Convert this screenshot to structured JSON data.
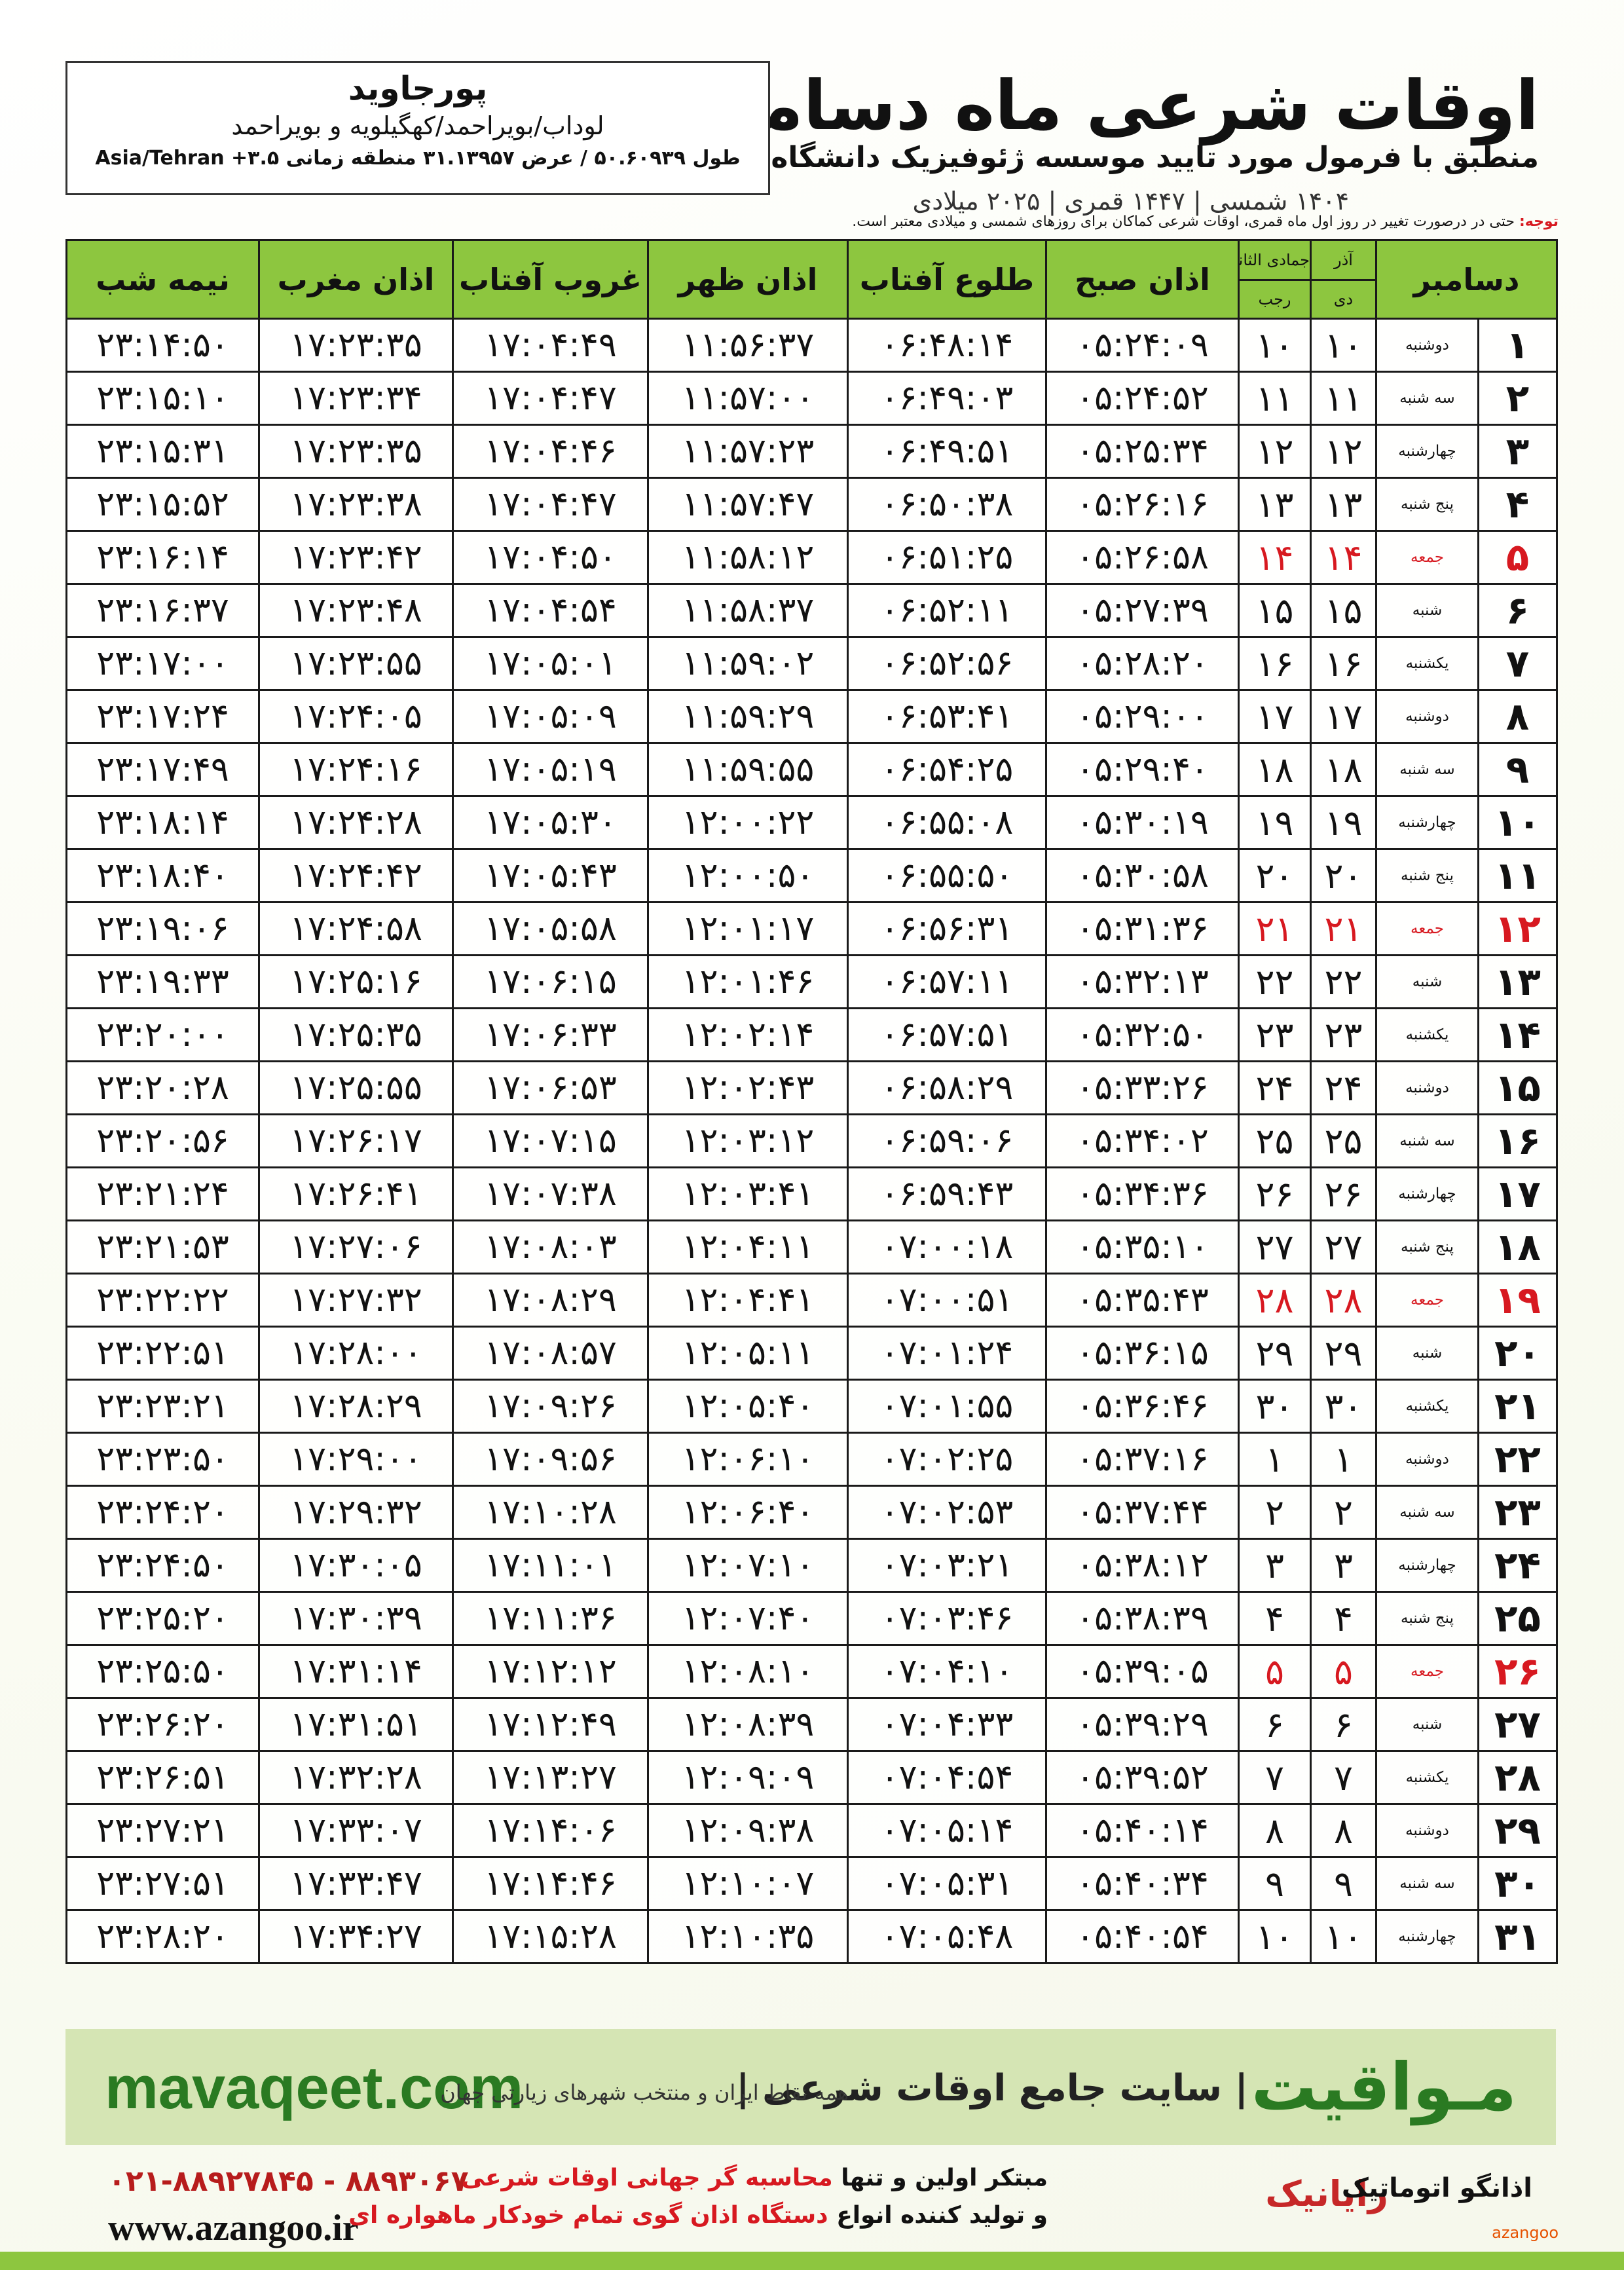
{
  "header": {
    "title": "اوقات شرعی ماه دسامبر",
    "subtitle": "منطبق با فرمول مورد تایید موسسه ژئوفیزیک دانشگاه تهران",
    "dates": "۱۴۰۴ شمسی | ۱۴۴۷ قمری | ۲۰۲۵ میلادی"
  },
  "location": {
    "name": "پورجاوید",
    "region": "لوداب/بویراحمد/کهگیلویه و بویراحمد",
    "coords": "طول ۵۰.۶۰۹۳۹ / عرض ۳۱.۱۳۹۵۷ منطقه زمانی ۳.۵+ Asia/Tehran"
  },
  "note": {
    "label": "توجه:",
    "text": "حتی در درصورت تغییر در روز اول ماه قمری، اوقات شرعی کماکان برای روزهای شمسی و میلادی معتبر است."
  },
  "table": {
    "month_label": "دسامبر",
    "shamsi": [
      "آذر",
      "دی"
    ],
    "lunar": [
      "جمادی الثانی",
      "رجب"
    ],
    "columns": [
      "اذان صبح",
      "طلوع آفتاب",
      "اذان ظهر",
      "غروب آفتاب",
      "اذان مغرب",
      "نیمه شب"
    ],
    "rows": [
      {
        "cells": [
          "۱",
          "دوشنبه",
          "۱۰",
          "۱۰",
          "۰۵:۲۴:۰۹",
          "۰۶:۴۸:۱۴",
          "۱۱:۵۶:۳۷",
          "۱۷:۰۴:۴۹",
          "۱۷:۲۳:۳۵",
          "۲۳:۱۴:۵۰"
        ]
      },
      {
        "cells": [
          "۲",
          "سه شنبه",
          "۱۱",
          "۱۱",
          "۰۵:۲۴:۵۲",
          "۰۶:۴۹:۰۳",
          "۱۱:۵۷:۰۰",
          "۱۷:۰۴:۴۷",
          "۱۷:۲۳:۳۴",
          "۲۳:۱۵:۱۰"
        ]
      },
      {
        "cells": [
          "۳",
          "چهارشنبه",
          "۱۲",
          "۱۲",
          "۰۵:۲۵:۳۴",
          "۰۶:۴۹:۵۱",
          "۱۱:۵۷:۲۳",
          "۱۷:۰۴:۴۶",
          "۱۷:۲۳:۳۵",
          "۲۳:۱۵:۳۱"
        ]
      },
      {
        "cells": [
          "۴",
          "پنج شنبه",
          "۱۳",
          "۱۳",
          "۰۵:۲۶:۱۶",
          "۰۶:۵۰:۳۸",
          "۱۱:۵۷:۴۷",
          "۱۷:۰۴:۴۷",
          "۱۷:۲۳:۳۸",
          "۲۳:۱۵:۵۲"
        ]
      },
      {
        "cells": [
          "۵",
          "جمعه",
          "۱۴",
          "۱۴",
          "۰۵:۲۶:۵۸",
          "۰۶:۵۱:۲۵",
          "۱۱:۵۸:۱۲",
          "۱۷:۰۴:۵۰",
          "۱۷:۲۳:۴۲",
          "۲۳:۱۶:۱۴"
        ],
        "color": "#d71920"
      },
      {
        "cells": [
          "۶",
          "شنبه",
          "۱۵",
          "۱۵",
          "۰۵:۲۷:۳۹",
          "۰۶:۵۲:۱۱",
          "۱۱:۵۸:۳۷",
          "۱۷:۰۴:۵۴",
          "۱۷:۲۳:۴۸",
          "۲۳:۱۶:۳۷"
        ]
      },
      {
        "cells": [
          "۷",
          "یکشنبه",
          "۱۶",
          "۱۶",
          "۰۵:۲۸:۲۰",
          "۰۶:۵۲:۵۶",
          "۱۱:۵۹:۰۲",
          "۱۷:۰۵:۰۱",
          "۱۷:۲۳:۵۵",
          "۲۳:۱۷:۰۰"
        ]
      },
      {
        "cells": [
          "۸",
          "دوشنبه",
          "۱۷",
          "۱۷",
          "۰۵:۲۹:۰۰",
          "۰۶:۵۳:۴۱",
          "۱۱:۵۹:۲۹",
          "۱۷:۰۵:۰۹",
          "۱۷:۲۴:۰۵",
          "۲۳:۱۷:۲۴"
        ]
      },
      {
        "cells": [
          "۹",
          "سه شنبه",
          "۱۸",
          "۱۸",
          "۰۵:۲۹:۴۰",
          "۰۶:۵۴:۲۵",
          "۱۱:۵۹:۵۵",
          "۱۷:۰۵:۱۹",
          "۱۷:۲۴:۱۶",
          "۲۳:۱۷:۴۹"
        ]
      },
      {
        "cells": [
          "۱۰",
          "چهارشنبه",
          "۱۹",
          "۱۹",
          "۰۵:۳۰:۱۹",
          "۰۶:۵۵:۰۸",
          "۱۲:۰۰:۲۲",
          "۱۷:۰۵:۳۰",
          "۱۷:۲۴:۲۸",
          "۲۳:۱۸:۱۴"
        ]
      },
      {
        "cells": [
          "۱۱",
          "پنج شنبه",
          "۲۰",
          "۲۰",
          "۰۵:۳۰:۵۸",
          "۰۶:۵۵:۵۰",
          "۱۲:۰۰:۵۰",
          "۱۷:۰۵:۴۳",
          "۱۷:۲۴:۴۲",
          "۲۳:۱۸:۴۰"
        ]
      },
      {
        "cells": [
          "۱۲",
          "جمعه",
          "۲۱",
          "۲۱",
          "۰۵:۳۱:۳۶",
          "۰۶:۵۶:۳۱",
          "۱۲:۰۱:۱۷",
          "۱۷:۰۵:۵۸",
          "۱۷:۲۴:۵۸",
          "۲۳:۱۹:۰۶"
        ],
        "color": "#d71920"
      },
      {
        "cells": [
          "۱۳",
          "شنبه",
          "۲۲",
          "۲۲",
          "۰۵:۳۲:۱۳",
          "۰۶:۵۷:۱۱",
          "۱۲:۰۱:۴۶",
          "۱۷:۰۶:۱۵",
          "۱۷:۲۵:۱۶",
          "۲۳:۱۹:۳۳"
        ]
      },
      {
        "cells": [
          "۱۴",
          "یکشنبه",
          "۲۳",
          "۲۳",
          "۰۵:۳۲:۵۰",
          "۰۶:۵۷:۵۱",
          "۱۲:۰۲:۱۴",
          "۱۷:۰۶:۳۳",
          "۱۷:۲۵:۳۵",
          "۲۳:۲۰:۰۰"
        ]
      },
      {
        "cells": [
          "۱۵",
          "دوشنبه",
          "۲۴",
          "۲۴",
          "۰۵:۳۳:۲۶",
          "۰۶:۵۸:۲۹",
          "۱۲:۰۲:۴۳",
          "۱۷:۰۶:۵۳",
          "۱۷:۲۵:۵۵",
          "۲۳:۲۰:۲۸"
        ]
      },
      {
        "cells": [
          "۱۶",
          "سه شنبه",
          "۲۵",
          "۲۵",
          "۰۵:۳۴:۰۲",
          "۰۶:۵۹:۰۶",
          "۱۲:۰۳:۱۲",
          "۱۷:۰۷:۱۵",
          "۱۷:۲۶:۱۷",
          "۲۳:۲۰:۵۶"
        ]
      },
      {
        "cells": [
          "۱۷",
          "چهارشنبه",
          "۲۶",
          "۲۶",
          "۰۵:۳۴:۳۶",
          "۰۶:۵۹:۴۳",
          "۱۲:۰۳:۴۱",
          "۱۷:۰۷:۳۸",
          "۱۷:۲۶:۴۱",
          "۲۳:۲۱:۲۴"
        ]
      },
      {
        "cells": [
          "۱۸",
          "پنج شنبه",
          "۲۷",
          "۲۷",
          "۰۵:۳۵:۱۰",
          "۰۷:۰۰:۱۸",
          "۱۲:۰۴:۱۱",
          "۱۷:۰۸:۰۳",
          "۱۷:۲۷:۰۶",
          "۲۳:۲۱:۵۳"
        ]
      },
      {
        "cells": [
          "۱۹",
          "جمعه",
          "۲۸",
          "۲۸",
          "۰۵:۳۵:۴۳",
          "۰۷:۰۰:۵۱",
          "۱۲:۰۴:۴۱",
          "۱۷:۰۸:۲۹",
          "۱۷:۲۷:۳۲",
          "۲۳:۲۲:۲۲"
        ],
        "color": "#d71920"
      },
      {
        "cells": [
          "۲۰",
          "شنبه",
          "۲۹",
          "۲۹",
          "۰۵:۳۶:۱۵",
          "۰۷:۰۱:۲۴",
          "۱۲:۰۵:۱۱",
          "۱۷:۰۸:۵۷",
          "۱۷:۲۸:۰۰",
          "۲۳:۲۲:۵۱"
        ]
      },
      {
        "cells": [
          "۲۱",
          "یکشنبه",
          "۳۰",
          "۳۰",
          "۰۵:۳۶:۴۶",
          "۰۷:۰۱:۵۵",
          "۱۲:۰۵:۴۰",
          "۱۷:۰۹:۲۶",
          "۱۷:۲۸:۲۹",
          "۲۳:۲۳:۲۱"
        ]
      },
      {
        "cells": [
          "۲۲",
          "دوشنبه",
          "۱",
          "۱",
          "۰۵:۳۷:۱۶",
          "۰۷:۰۲:۲۵",
          "۱۲:۰۶:۱۰",
          "۱۷:۰۹:۵۶",
          "۱۷:۲۹:۰۰",
          "۲۳:۲۳:۵۰"
        ]
      },
      {
        "cells": [
          "۲۳",
          "سه شنبه",
          "۲",
          "۲",
          "۰۵:۳۷:۴۴",
          "۰۷:۰۲:۵۳",
          "۱۲:۰۶:۴۰",
          "۱۷:۱۰:۲۸",
          "۱۷:۲۹:۳۲",
          "۲۳:۲۴:۲۰"
        ]
      },
      {
        "cells": [
          "۲۴",
          "چهارشنبه",
          "۳",
          "۳",
          "۰۵:۳۸:۱۲",
          "۰۷:۰۳:۲۱",
          "۱۲:۰۷:۱۰",
          "۱۷:۱۱:۰۱",
          "۱۷:۳۰:۰۵",
          "۲۳:۲۴:۵۰"
        ]
      },
      {
        "cells": [
          "۲۵",
          "پنج شنبه",
          "۴",
          "۴",
          "۰۵:۳۸:۳۹",
          "۰۷:۰۳:۴۶",
          "۱۲:۰۷:۴۰",
          "۱۷:۱۱:۳۶",
          "۱۷:۳۰:۳۹",
          "۲۳:۲۵:۲۰"
        ]
      },
      {
        "cells": [
          "۲۶",
          "جمعه",
          "۵",
          "۵",
          "۰۵:۳۹:۰۵",
          "۰۷:۰۴:۱۰",
          "۱۲:۰۸:۱۰",
          "۱۷:۱۲:۱۲",
          "۱۷:۳۱:۱۴",
          "۲۳:۲۵:۵۰"
        ],
        "color": "#d71920"
      },
      {
        "cells": [
          "۲۷",
          "شنبه",
          "۶",
          "۶",
          "۰۵:۳۹:۲۹",
          "۰۷:۰۴:۳۳",
          "۱۲:۰۸:۳۹",
          "۱۷:۱۲:۴۹",
          "۱۷:۳۱:۵۱",
          "۲۳:۲۶:۲۰"
        ]
      },
      {
        "cells": [
          "۲۸",
          "یکشنبه",
          "۷",
          "۷",
          "۰۵:۳۹:۵۲",
          "۰۷:۰۴:۵۴",
          "۱۲:۰۹:۰۹",
          "۱۷:۱۳:۲۷",
          "۱۷:۳۲:۲۸",
          "۲۳:۲۶:۵۱"
        ]
      },
      {
        "cells": [
          "۲۹",
          "دوشنبه",
          "۸",
          "۸",
          "۰۵:۴۰:۱۴",
          "۰۷:۰۵:۱۴",
          "۱۲:۰۹:۳۸",
          "۱۷:۱۴:۰۶",
          "۱۷:۳۳:۰۷",
          "۲۳:۲۷:۲۱"
        ]
      },
      {
        "cells": [
          "۳۰",
          "سه شنبه",
          "۹",
          "۹",
          "۰۵:۴۰:۳۴",
          "۰۷:۰۵:۳۱",
          "۱۲:۱۰:۰۷",
          "۱۷:۱۴:۴۶",
          "۱۷:۳۳:۴۷",
          "۲۳:۲۷:۵۱"
        ]
      },
      {
        "cells": [
          "۳۱",
          "چهارشنبه",
          "۱۰",
          "۱۰",
          "۰۵:۴۰:۵۴",
          "۰۷:۰۵:۴۸",
          "۱۲:۱۰:۳۵",
          "۱۷:۱۵:۲۸",
          "۱۷:۳۴:۲۷",
          "۲۳:۲۸:۲۰"
        ]
      }
    ]
  },
  "footer": {
    "site": "mavaqeet.com",
    "brand": "مـواقیت",
    "slogan": "| سایت جامع اوقات شرعی |",
    "tagline": "همه نقاط ایران و منتخب شهرهای زیارتی جهان"
  },
  "contact": {
    "phone": "۰۲۱-۸۸۹۲۷۸۴۵ - ۸۸۹۳۰۶۷۰",
    "url": "www.azangoo.ir",
    "line1": [
      "مبتکر اولین و تنها",
      "محاسبه گر جهانی اوقات شرعی"
    ],
    "line2": [
      "و تولید کننده انواع",
      "دستگاه اذان گوی تمام خودکار ماهواره ای"
    ],
    "logos": [
      "رایانیک",
      "اذانگو اتوماتیک",
      "azangoo"
    ]
  }
}
